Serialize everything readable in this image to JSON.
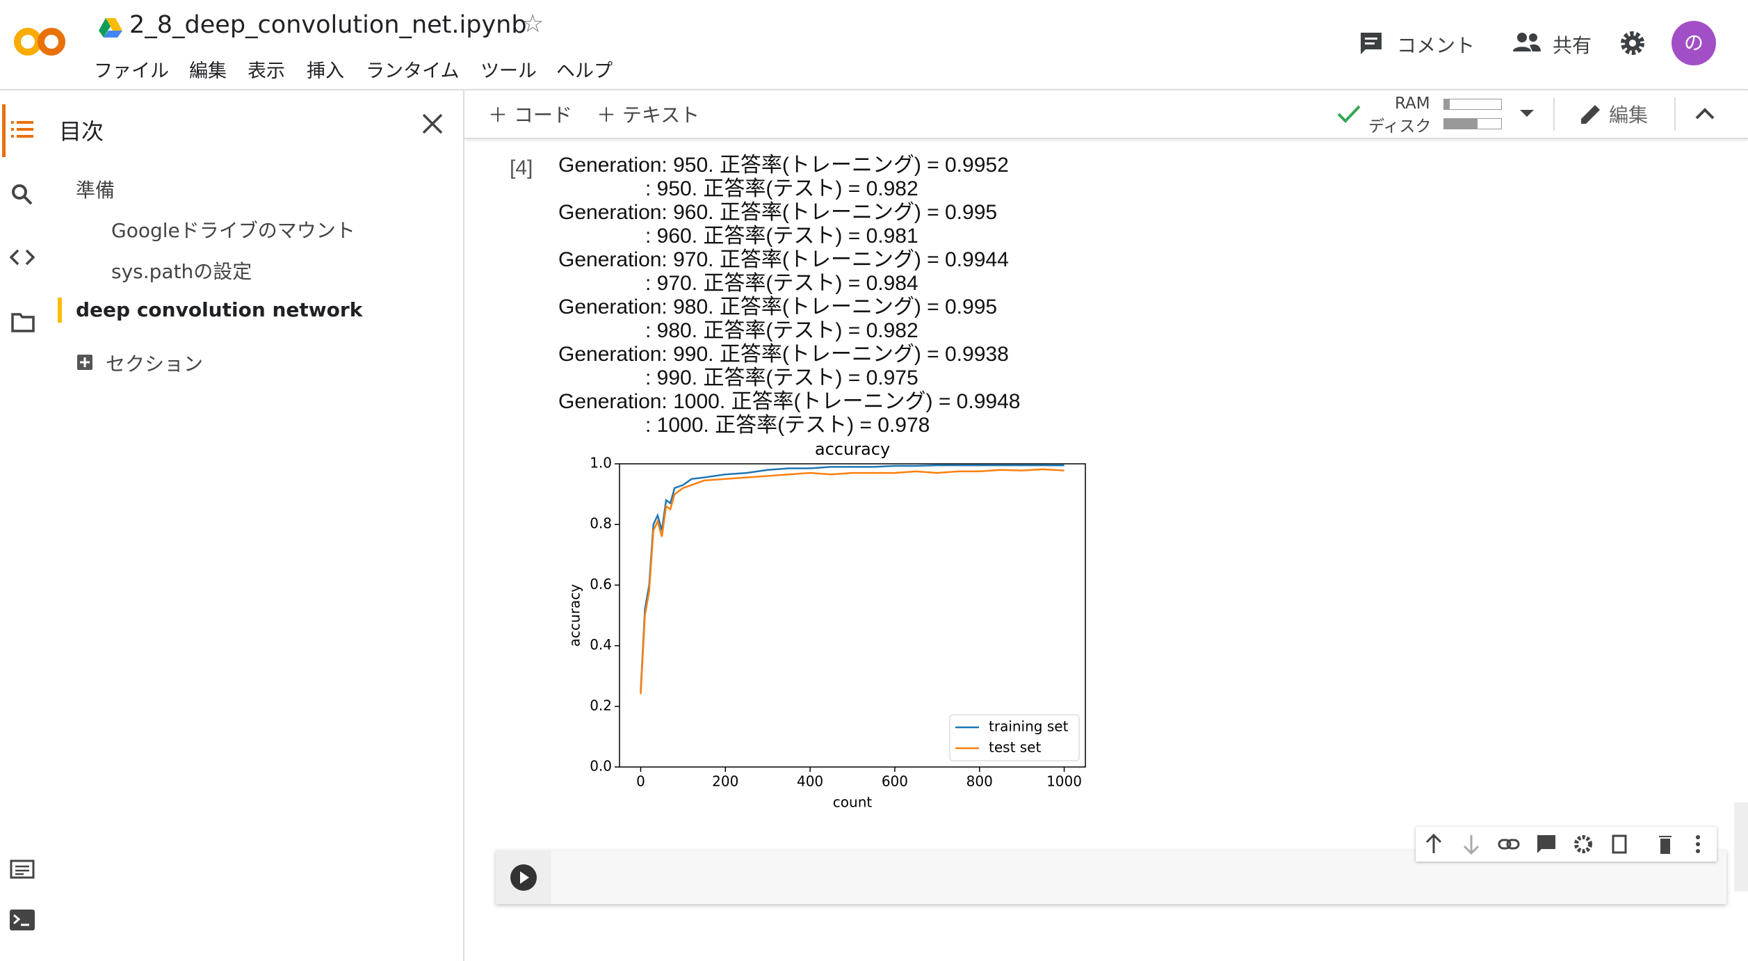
{
  "header": {
    "title": "2_8_deep_convolution_net.ipynb",
    "menu": [
      "ファイル",
      "編集",
      "表示",
      "挿入",
      "ランタイム",
      "ツール",
      "ヘルプ"
    ],
    "comment": "コメント",
    "share": "共有",
    "avatar": "の"
  },
  "toolbar": {
    "add_code": "コード",
    "add_text": "テキスト",
    "ram": "RAM",
    "disk": "ディスク",
    "edit": "編集"
  },
  "sidebar": {
    "title": "目次",
    "items": [
      "準備",
      "Googleドライブのマウント",
      "sys.pathの設定",
      "deep convolution network"
    ],
    "add_section": "セクション"
  },
  "cell": {
    "execution_count": "[4]",
    "output_lines": [
      "Generation: 950. 正答率(トレーニング) = 0.9952",
      ": 950. 正答率(テスト) = 0.982",
      "Generation: 960. 正答率(トレーニング) = 0.995",
      ": 960. 正答率(テスト) = 0.981",
      "Generation: 970. 正答率(トレーニング) = 0.9944",
      ": 970. 正答率(テスト) = 0.984",
      "Generation: 980. 正答率(トレーニング) = 0.995",
      ": 980. 正答率(テスト) = 0.982",
      "Generation: 990. 正答率(トレーニング) = 0.9938",
      ": 990. 正答率(テスト) = 0.975",
      "Generation: 1000. 正答率(トレーニング) = 0.9948",
      ": 1000. 正答率(テスト) = 0.978"
    ]
  },
  "chart_data": {
    "type": "line",
    "title": "accuracy",
    "xlabel": "count",
    "ylabel": "accuracy",
    "x": [
      0,
      10,
      20,
      30,
      40,
      50,
      60,
      70,
      80,
      100,
      120,
      150,
      200,
      250,
      300,
      350,
      400,
      450,
      500,
      550,
      600,
      650,
      700,
      750,
      800,
      850,
      900,
      950,
      1000
    ],
    "series": [
      {
        "name": "training set",
        "color": "#1f77b4",
        "values": [
          0.25,
          0.52,
          0.6,
          0.8,
          0.83,
          0.78,
          0.88,
          0.87,
          0.92,
          0.93,
          0.95,
          0.955,
          0.965,
          0.97,
          0.98,
          0.985,
          0.985,
          0.99,
          0.99,
          0.99,
          0.993,
          0.993,
          0.995,
          0.995,
          0.995,
          0.995,
          0.995,
          0.9952,
          0.9948
        ]
      },
      {
        "name": "test set",
        "color": "#ff7f0e",
        "values": [
          0.24,
          0.5,
          0.58,
          0.78,
          0.81,
          0.76,
          0.86,
          0.85,
          0.9,
          0.92,
          0.93,
          0.945,
          0.95,
          0.955,
          0.96,
          0.965,
          0.97,
          0.965,
          0.97,
          0.97,
          0.97,
          0.975,
          0.97,
          0.975,
          0.975,
          0.98,
          0.978,
          0.982,
          0.978
        ]
      }
    ],
    "xlim": [
      -50,
      1050
    ],
    "ylim": [
      0,
      1
    ],
    "xticks": [
      0,
      200,
      400,
      600,
      800,
      1000
    ],
    "yticks": [
      {
        "value": 0,
        "label": "0.0"
      },
      0.2,
      0.4,
      0.6,
      0.8,
      {
        "value": 1,
        "label": "1.0"
      }
    ],
    "legend": "lower right"
  }
}
